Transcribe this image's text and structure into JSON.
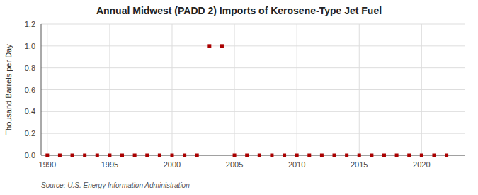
{
  "chart_data": {
    "type": "scatter",
    "title": "Annual Midwest (PADD 2) Imports of Kerosene-Type Jet Fuel",
    "y_label": "Thousand Barrels per Day",
    "source": "Source: U.S. Energy Information Administration",
    "x": [
      1990,
      1991,
      1992,
      1993,
      1994,
      1995,
      1996,
      1997,
      1998,
      1999,
      2000,
      2001,
      2002,
      2003,
      2004,
      2005,
      2006,
      2007,
      2008,
      2009,
      2010,
      2011,
      2012,
      2013,
      2014,
      2015,
      2016,
      2017,
      2018,
      2019,
      2020,
      2021,
      2022
    ],
    "values": [
      0.0,
      0.0,
      0.0,
      0.0,
      0.0,
      0.0,
      0.0,
      0.0,
      0.0,
      0.0,
      0.0,
      0.0,
      0.0,
      1.0,
      1.0,
      0.0,
      0.0,
      0.0,
      0.0,
      0.0,
      0.0,
      0.0,
      0.0,
      0.0,
      0.0,
      0.0,
      0.0,
      0.0,
      0.0,
      0.0,
      0.0,
      0.0,
      0.0
    ],
    "color": "#aa0000",
    "marker": "square",
    "xlim": [
      1989.5,
      2023.5
    ],
    "xticks": [
      1990,
      1995,
      2000,
      2005,
      2010,
      2015,
      2020
    ],
    "ylim": [
      0.0,
      1.2
    ],
    "yticks": [
      {
        "value": 0.0,
        "label": "0.0"
      },
      0.2,
      0.4,
      0.6,
      0.8,
      {
        "value": 1.0,
        "label": "1.0"
      },
      1.2
    ],
    "grid": true
  }
}
